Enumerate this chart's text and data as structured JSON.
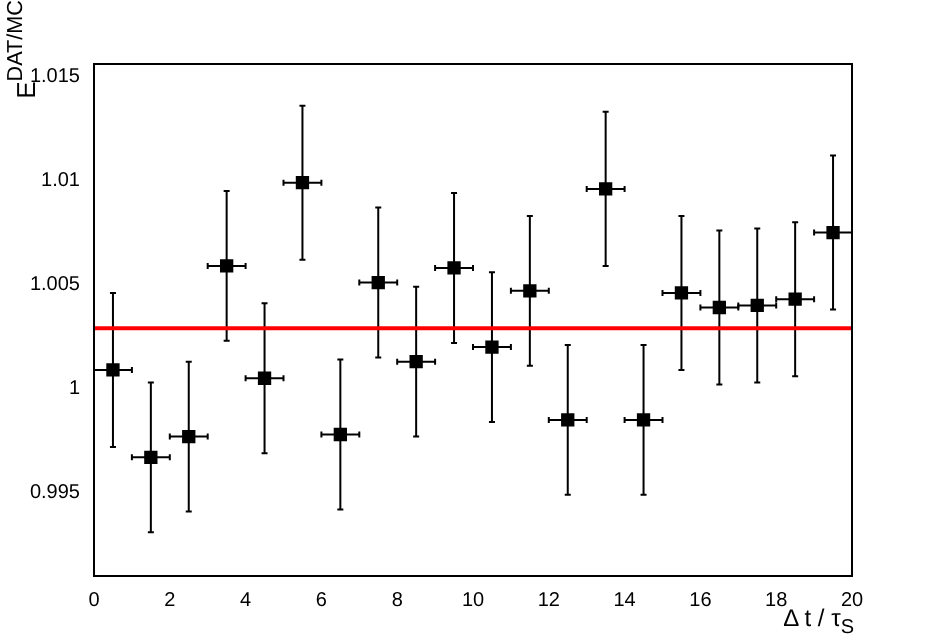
{
  "chart_data": {
    "type": "scatter",
    "xlabel": "Δ t / τ$_{S}$",
    "ylabel": "E$^{DAT/MC}$",
    "x": [
      0.5,
      1.5,
      2.5,
      3.5,
      4.5,
      5.5,
      6.5,
      7.5,
      8.5,
      9.5,
      10.5,
      11.5,
      12.5,
      13.5,
      14.5,
      15.5,
      16.5,
      17.5,
      18.5,
      19.5
    ],
    "series": [
      {
        "color": "#000000",
        "values": [
          1.0009,
          0.9967,
          0.9977,
          1.0059,
          1.0005,
          1.0099,
          0.9978,
          1.0051,
          1.0013,
          1.0058,
          1.002,
          1.0047,
          0.9985,
          1.0096,
          0.9985,
          1.0046,
          1.0039,
          1.004,
          1.0043,
          1.0075
        ],
        "errors": [
          0.0037,
          0.0036,
          0.0036,
          0.0036,
          0.0036,
          0.0037,
          0.0036,
          0.0036,
          0.0036,
          0.0036,
          0.0036,
          0.0036,
          0.0036,
          0.0037,
          0.0036,
          0.0037,
          0.0037,
          0.0037,
          0.0037,
          0.0037
        ],
        "xerrors": [
          0.5,
          0.5,
          0.5,
          0.5,
          0.5,
          0.5,
          0.5,
          0.5,
          0.5,
          0.5,
          0.5,
          0.5,
          0.5,
          0.5,
          0.5,
          0.5,
          0.5,
          0.5,
          0.5,
          0.5
        ]
      }
    ],
    "ref_lines": [
      {
        "axis": "y",
        "value": 1.0029,
        "color": "#ff0000"
      }
    ],
    "xlim": [
      0,
      20
    ],
    "xticks": [
      0,
      2,
      4,
      6,
      8,
      10,
      12,
      14,
      16,
      18,
      20
    ],
    "ylim": [
      0.991,
      1.0156
    ],
    "yticks": [
      0.995,
      1,
      1.005,
      1.01,
      1.015
    ],
    "marker": "square",
    "grid": false,
    "legend": false
  }
}
